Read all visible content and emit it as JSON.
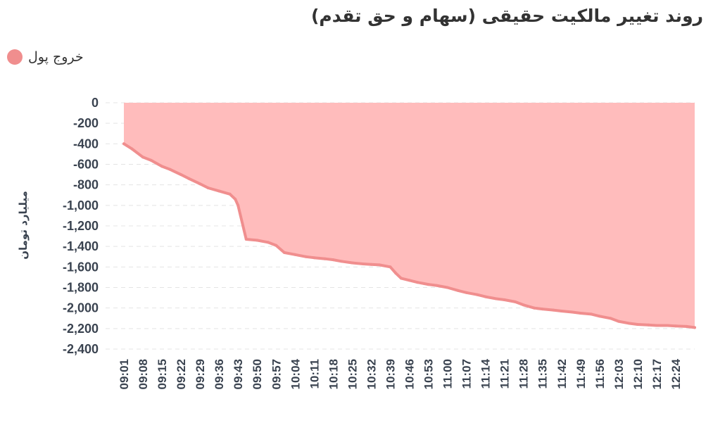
{
  "title": "روند تغییر مالکیت حقیقی (سهام و حق تقدم)",
  "legend": {
    "label": "خروج پول",
    "color": "#f08e8e"
  },
  "chart_data": {
    "type": "area",
    "title": "روند تغییر مالکیت حقیقی (سهام و حق تقدم)",
    "ylabel": "میلیارد تومان",
    "ylim": [
      -2400,
      0
    ],
    "yticks": [
      "0",
      "-200",
      "-400",
      "-600",
      "-800",
      "-1,000",
      "-1,200",
      "-1,400",
      "-1,600",
      "-1,800",
      "-2,000",
      "-2,200",
      "-2,400"
    ],
    "ytick_values": [
      0,
      -200,
      -400,
      -600,
      -800,
      -1000,
      -1200,
      -1400,
      -1600,
      -1800,
      -2000,
      -2200,
      -2400
    ],
    "xticks": [
      "09:01",
      "09:08",
      "09:15",
      "09:22",
      "09:29",
      "09:36",
      "09:43",
      "09:50",
      "09:57",
      "10:04",
      "10:11",
      "10:18",
      "10:25",
      "10:32",
      "10:39",
      "10:46",
      "10:53",
      "11:00",
      "11:07",
      "11:14",
      "11:21",
      "11:28",
      "11:35",
      "11:42",
      "11:49",
      "11:56",
      "12:03",
      "12:10",
      "12:17",
      "12:24"
    ],
    "grid": true,
    "legend_position": "top-left",
    "series": [
      {
        "name": "خروج پول",
        "color": "#f08e8e",
        "fill": "#ffbcbc",
        "x": [
          "09:01",
          "09:04",
          "09:08",
          "09:11",
          "09:15",
          "09:18",
          "09:22",
          "09:25",
          "09:29",
          "09:32",
          "09:36",
          "09:40",
          "09:42",
          "09:43",
          "09:46",
          "09:50",
          "09:54",
          "09:57",
          "10:00",
          "10:04",
          "10:08",
          "10:11",
          "10:15",
          "10:18",
          "10:21",
          "10:25",
          "10:29",
          "10:32",
          "10:35",
          "10:39",
          "10:41",
          "10:43",
          "10:46",
          "10:49",
          "10:53",
          "10:56",
          "11:00",
          "11:04",
          "11:07",
          "11:11",
          "11:14",
          "11:18",
          "11:21",
          "11:25",
          "11:28",
          "11:32",
          "11:35",
          "11:39",
          "11:42",
          "11:46",
          "11:49",
          "11:53",
          "11:56",
          "12:00",
          "12:03",
          "12:07",
          "12:10",
          "12:14",
          "12:17",
          "12:21",
          "12:24",
          "12:28",
          "12:31"
        ],
        "values": [
          -400,
          -450,
          -530,
          -560,
          -620,
          -650,
          -700,
          -740,
          -790,
          -830,
          -860,
          -890,
          -940,
          -1000,
          -1330,
          -1340,
          -1360,
          -1390,
          -1460,
          -1480,
          -1500,
          -1510,
          -1520,
          -1530,
          -1545,
          -1560,
          -1570,
          -1575,
          -1580,
          -1600,
          -1660,
          -1710,
          -1730,
          -1750,
          -1770,
          -1780,
          -1800,
          -1830,
          -1850,
          -1870,
          -1890,
          -1910,
          -1920,
          -1940,
          -1970,
          -2000,
          -2010,
          -2020,
          -2030,
          -2040,
          -2050,
          -2060,
          -2080,
          -2100,
          -2130,
          -2150,
          -2160,
          -2165,
          -2170,
          -2170,
          -2175,
          -2180,
          -2190
        ]
      }
    ]
  }
}
